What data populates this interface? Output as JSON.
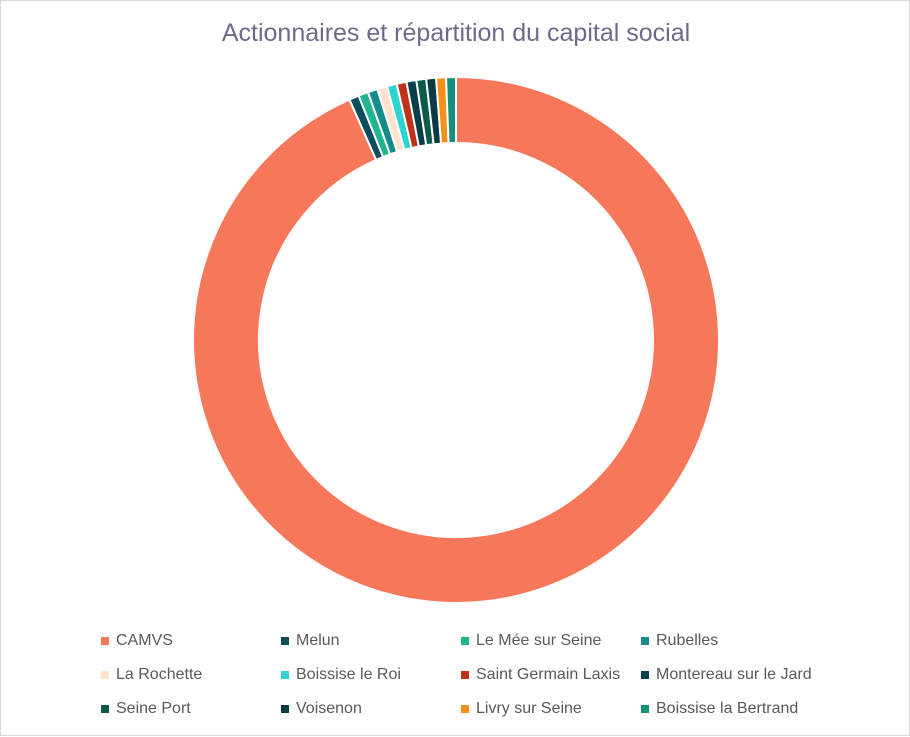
{
  "chart_data": {
    "type": "pie",
    "style": "donut",
    "title": "Actionnaires et répartition du capital social",
    "legend_position": "bottom",
    "start_angle_deg": 0,
    "categories": [
      "CAMVS",
      "Melun",
      "Le Mée sur Seine",
      "Rubelles",
      "La Rochette",
      "Boissise le Roi",
      "Saint Germain Laxis",
      "Montereau sur le Jard",
      "Seine Port",
      "Voisenon",
      "Livry sur Seine",
      "Boissise la Bertrand"
    ],
    "values": [
      92.8,
      0.6,
      0.6,
      0.6,
      0.6,
      0.6,
      0.6,
      0.6,
      0.6,
      0.6,
      0.6,
      0.6
    ],
    "colors": [
      "#f6775a",
      "#0b4f5e",
      "#1fb58f",
      "#178a8a",
      "#fbe3cf",
      "#2ed4cf",
      "#c0311b",
      "#0a3f4a",
      "#0b5a4a",
      "#0c3a44",
      "#f39019",
      "#138f7e"
    ]
  }
}
